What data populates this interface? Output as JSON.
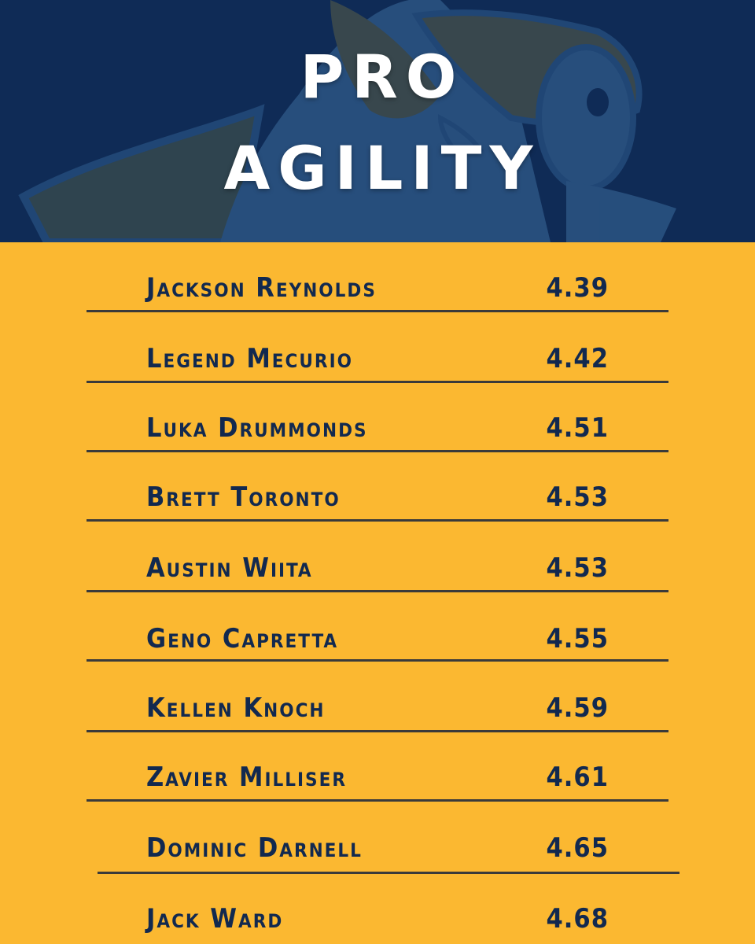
{
  "title": {
    "line1": "PRO",
    "line2": "AGILITY"
  },
  "colors": {
    "navy": "#0f2b56",
    "gold": "#fbb831",
    "text": "#12294f",
    "divider": "#3a3a3a",
    "title": "#ffffff"
  },
  "mascot": {
    "icon": "hornet-mascot-watermark"
  },
  "leaderboard": [
    {
      "name": "Jackson Reynolds",
      "time": "4.39"
    },
    {
      "name": "Legend Mecurio",
      "time": "4.42"
    },
    {
      "name": "Luka Drummonds",
      "time": "4.51"
    },
    {
      "name": "Brett Toronto",
      "time": "4.53"
    },
    {
      "name": "Austin Wiita",
      "time": "4.53"
    },
    {
      "name": "Geno Capretta",
      "time": "4.55"
    },
    {
      "name": "Kellen Knoch",
      "time": "4.59"
    },
    {
      "name": "Zavier Milliser",
      "time": "4.61"
    },
    {
      "name": "Dominic Darnell",
      "time": "4.65"
    },
    {
      "name": "Jack Ward",
      "time": "4.68"
    }
  ]
}
